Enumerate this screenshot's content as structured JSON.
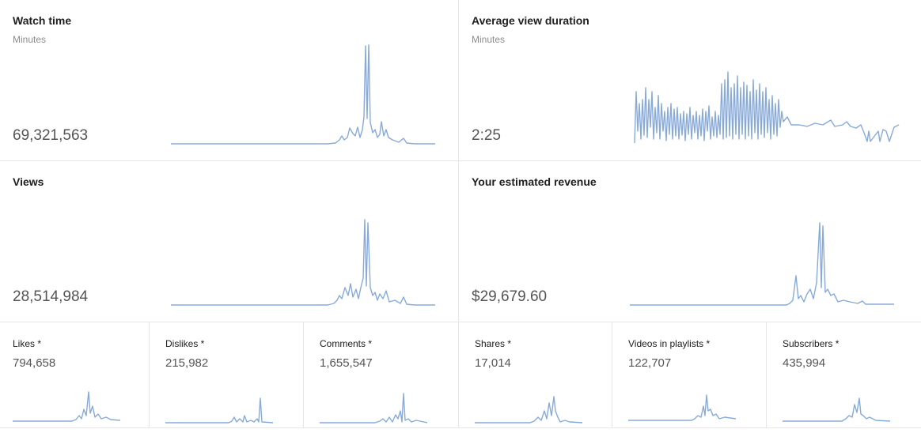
{
  "cards": {
    "watch_time": {
      "title": "Watch time",
      "subtitle": "Minutes",
      "value": "69,321,563"
    },
    "avg_view_duration": {
      "title": "Average view duration",
      "subtitle": "Minutes",
      "value": "2:25"
    },
    "views": {
      "title": "Views",
      "value": "28,514,984"
    },
    "revenue": {
      "title": "Your estimated revenue",
      "value": "$29,679.60"
    }
  },
  "metrics": [
    {
      "title": "Likes *",
      "value": "794,658"
    },
    {
      "title": "Dislikes *",
      "value": "215,982"
    },
    {
      "title": "Comments *",
      "value": "1,655,547"
    },
    {
      "title": "Shares *",
      "value": "17,014"
    },
    {
      "title": "Videos in playlists *",
      "value": "122,707"
    },
    {
      "title": "Subscribers *",
      "value": "435,994"
    }
  ],
  "colors": {
    "sparkline": "#88aad8",
    "divider": "#e6e6e6",
    "value_text": "#555555"
  }
}
